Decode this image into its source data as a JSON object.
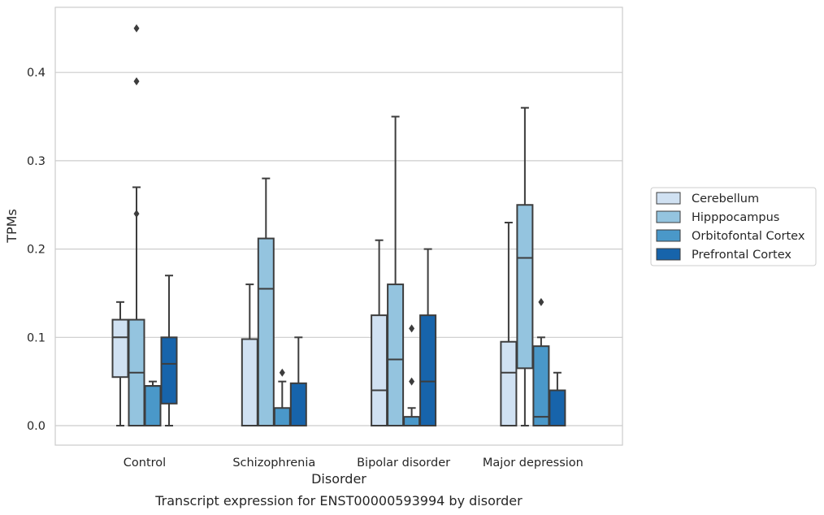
{
  "caption": "Transcript expression for ENST00000593994 by disorder",
  "chart_data": {
    "type": "box",
    "title": "",
    "xlabel": "Disorder",
    "ylabel": "TPMs",
    "ylim": [
      -0.022,
      0.475
    ],
    "yticks": [
      0.0,
      0.1,
      0.2,
      0.3,
      0.4
    ],
    "ytick_labels": [
      "0.0",
      "0.1",
      "0.2",
      "0.3",
      "0.4"
    ],
    "grid": "horizontal",
    "legend_position": "right",
    "categories": [
      "Control",
      "Schizophrenia",
      "Bipolar disorder",
      "Major depression"
    ],
    "series": [
      {
        "name": "Cerebellum",
        "color": "#d0e1f2",
        "boxes": [
          {
            "min": 0.0,
            "q1": 0.055,
            "median": 0.1,
            "q3": 0.12,
            "max": 0.14,
            "outliers": []
          },
          {
            "min": 0.0,
            "q1": 0.0,
            "median": 0.0,
            "q3": 0.098,
            "max": 0.16,
            "outliers": []
          },
          {
            "min": 0.0,
            "q1": 0.0,
            "median": 0.04,
            "q3": 0.125,
            "max": 0.21,
            "outliers": []
          },
          {
            "min": 0.0,
            "q1": 0.0,
            "median": 0.06,
            "q3": 0.095,
            "max": 0.23,
            "outliers": []
          }
        ]
      },
      {
        "name": "Hipppocampus",
        "color": "#94c4df",
        "boxes": [
          {
            "min": 0.0,
            "q1": 0.0,
            "median": 0.06,
            "q3": 0.12,
            "max": 0.27,
            "outliers": [
              0.24,
              0.39,
              0.45
            ]
          },
          {
            "min": 0.0,
            "q1": 0.0,
            "median": 0.155,
            "q3": 0.212,
            "max": 0.28,
            "outliers": []
          },
          {
            "min": 0.0,
            "q1": 0.0,
            "median": 0.075,
            "q3": 0.16,
            "max": 0.35,
            "outliers": []
          },
          {
            "min": 0.0,
            "q1": 0.065,
            "median": 0.19,
            "q3": 0.25,
            "max": 0.36,
            "outliers": []
          }
        ]
      },
      {
        "name": "Orbitofontal Cortex",
        "color": "#4a98c9",
        "boxes": [
          {
            "min": 0.0,
            "q1": 0.0,
            "median": 0.045,
            "q3": 0.045,
            "max": 0.05,
            "outliers": []
          },
          {
            "min": 0.0,
            "q1": 0.0,
            "median": 0.0,
            "q3": 0.02,
            "max": 0.05,
            "outliers": [
              0.06
            ]
          },
          {
            "min": 0.0,
            "q1": 0.0,
            "median": 0.0,
            "q3": 0.01,
            "max": 0.02,
            "outliers": [
              0.05,
              0.11
            ]
          },
          {
            "min": 0.0,
            "q1": 0.0,
            "median": 0.01,
            "q3": 0.09,
            "max": 0.1,
            "outliers": [
              0.14
            ]
          }
        ]
      },
      {
        "name": "Prefrontal Cortex",
        "color": "#1764ab",
        "boxes": [
          {
            "min": 0.0,
            "q1": 0.025,
            "median": 0.07,
            "q3": 0.1,
            "max": 0.17,
            "outliers": []
          },
          {
            "min": 0.0,
            "q1": 0.0,
            "median": 0.0,
            "q3": 0.048,
            "max": 0.1,
            "outliers": []
          },
          {
            "min": 0.0,
            "q1": 0.0,
            "median": 0.05,
            "q3": 0.125,
            "max": 0.2,
            "outliers": []
          },
          {
            "min": 0.0,
            "q1": 0.0,
            "median": 0.0,
            "q3": 0.04,
            "max": 0.06,
            "outliers": []
          }
        ]
      }
    ]
  }
}
